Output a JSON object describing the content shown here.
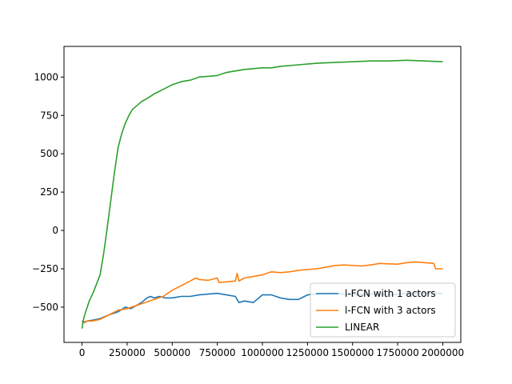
{
  "chart_data": {
    "type": "line",
    "title": "",
    "xlabel": "",
    "ylabel": "",
    "xlim": [
      -100000,
      2100000
    ],
    "ylim": [
      -730,
      1200
    ],
    "xticks": [
      0,
      250000,
      500000,
      750000,
      1000000,
      1250000,
      1500000,
      1750000,
      2000000
    ],
    "xtick_labels": [
      "0",
      "250000",
      "500000",
      "750000",
      "1000000",
      "1250000",
      "1500000",
      "1750000",
      "2000000"
    ],
    "yticks": [
      -500,
      -250,
      0,
      250,
      500,
      750,
      1000
    ],
    "ytick_labels": [
      "−500",
      "−250",
      "0",
      "250",
      "500",
      "750",
      "1000"
    ],
    "grid": false,
    "legend_position": "lower-right",
    "series": [
      {
        "name": "l-FCN with 1 actors",
        "color": "#1f77b4",
        "x": [
          0,
          15000,
          30000,
          60000,
          100000,
          150000,
          200000,
          240000,
          270000,
          300000,
          330000,
          360000,
          380000,
          400000,
          430000,
          460000,
          500000,
          550000,
          600000,
          650000,
          700000,
          750000,
          800000,
          850000,
          870000,
          900000,
          950000,
          1000000,
          1050000,
          1100000,
          1150000,
          1200000,
          1250000,
          1300000,
          1400000,
          1500000,
          1600000,
          1700000,
          1800000,
          1900000,
          2000000
        ],
        "y": [
          -590,
          -600,
          -590,
          -585,
          -575,
          -550,
          -530,
          -500,
          -510,
          -490,
          -470,
          -440,
          -430,
          -440,
          -430,
          -440,
          -440,
          -430,
          -430,
          -420,
          -415,
          -410,
          -420,
          -430,
          -470,
          -460,
          -470,
          -420,
          -420,
          -440,
          -450,
          -450,
          -420,
          -415,
          -410,
          -420,
          -415,
          -420,
          -410,
          -410,
          -410
        ]
      },
      {
        "name": "l-FCN with 3 actors",
        "color": "#ff7f0e",
        "x": [
          0,
          15000,
          30000,
          60000,
          100000,
          150000,
          200000,
          250000,
          300000,
          350000,
          400000,
          450000,
          500000,
          550000,
          600000,
          630000,
          650000,
          700000,
          750000,
          760000,
          800000,
          850000,
          860000,
          870000,
          900000,
          950000,
          1000000,
          1050000,
          1100000,
          1150000,
          1200000,
          1250000,
          1300000,
          1350000,
          1400000,
          1450000,
          1500000,
          1550000,
          1600000,
          1650000,
          1700000,
          1750000,
          1800000,
          1850000,
          1900000,
          1950000,
          1960000,
          2000000
        ],
        "y": [
          -605,
          -595,
          -590,
          -590,
          -580,
          -550,
          -520,
          -510,
          -490,
          -470,
          -450,
          -430,
          -390,
          -360,
          -330,
          -310,
          -320,
          -325,
          -310,
          -340,
          -335,
          -330,
          -280,
          -330,
          -310,
          -300,
          -290,
          -270,
          -275,
          -270,
          -260,
          -255,
          -250,
          -240,
          -230,
          -225,
          -228,
          -232,
          -225,
          -215,
          -218,
          -220,
          -210,
          -205,
          -210,
          -215,
          -250,
          -250
        ]
      },
      {
        "name": "LINEAR",
        "color": "#2ca02c",
        "x": [
          0,
          10000,
          20000,
          40000,
          60000,
          80000,
          100000,
          120000,
          140000,
          160000,
          180000,
          200000,
          220000,
          240000,
          260000,
          280000,
          300000,
          330000,
          360000,
          400000,
          450000,
          500000,
          550000,
          600000,
          650000,
          700000,
          750000,
          800000,
          850000,
          900000,
          950000,
          1000000,
          1050000,
          1100000,
          1200000,
          1300000,
          1400000,
          1500000,
          1600000,
          1700000,
          1800000,
          1900000,
          2000000
        ],
        "y": [
          -640,
          -570,
          -530,
          -460,
          -410,
          -350,
          -290,
          -150,
          20,
          200,
          380,
          540,
          630,
          700,
          750,
          790,
          810,
          840,
          860,
          890,
          920,
          950,
          970,
          980,
          1000,
          1005,
          1010,
          1030,
          1040,
          1050,
          1055,
          1060,
          1060,
          1070,
          1080,
          1090,
          1095,
          1100,
          1105,
          1105,
          1110,
          1105,
          1100
        ]
      }
    ]
  }
}
